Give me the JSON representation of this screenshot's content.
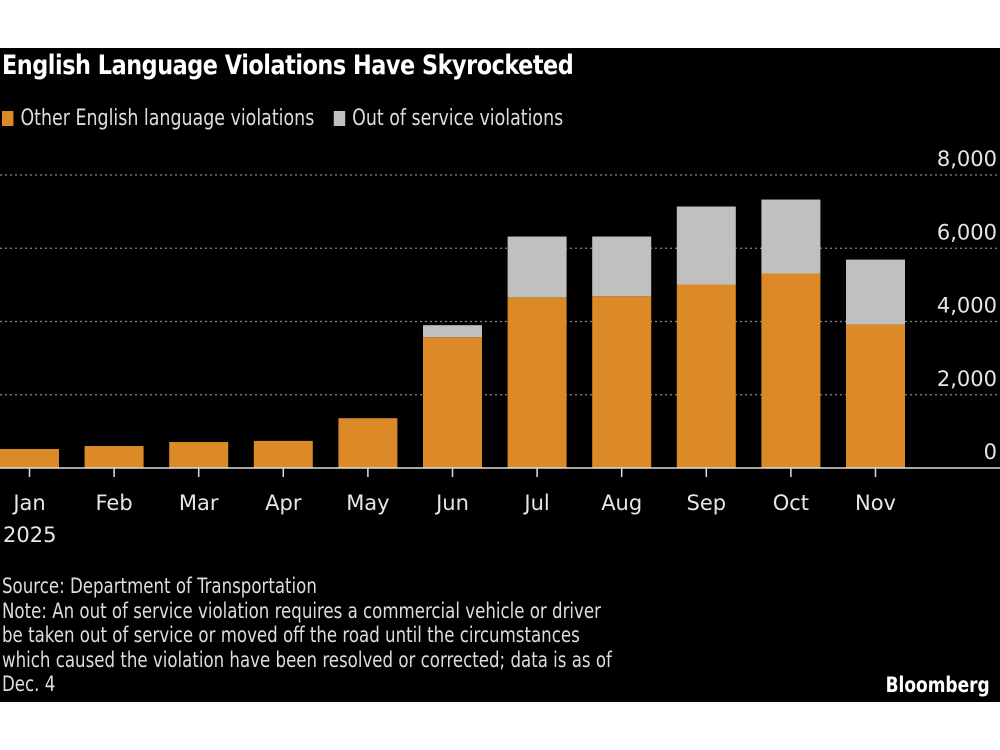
{
  "chart_data": {
    "type": "bar",
    "stacked": true,
    "title": "English Language Violations Have Skyrocketed",
    "categories": [
      "Jan",
      "Feb",
      "Mar",
      "Apr",
      "May",
      "Jun",
      "Jul",
      "Aug",
      "Sep",
      "Oct",
      "Nov"
    ],
    "x_sublabel": "2025",
    "series": [
      {
        "name": "Other English language violations",
        "color": "#dc8a27",
        "values": [
          520,
          600,
          710,
          740,
          1360,
          3570,
          4660,
          4690,
          5010,
          5310,
          3920
        ]
      },
      {
        "name": "Out of service violations",
        "color": "#c0c0c0",
        "values": [
          0,
          0,
          0,
          0,
          0,
          330,
          1660,
          1630,
          2130,
          2020,
          1770
        ]
      }
    ],
    "ylim": [
      0,
      8000
    ],
    "yticks": [
      "0",
      "2,000",
      "4,000",
      "6,000",
      "8,000"
    ],
    "ytick_values": [
      0,
      2000,
      4000,
      6000,
      8000
    ],
    "grid": true,
    "y_axis_side": "right",
    "legend_position": "top-left"
  },
  "footer": {
    "source": "Source: Department of Transportation",
    "note_lines": [
      "Note: An out of service violation requires a commercial vehicle or driver",
      "be taken out of service or moved off the road until the circumstances",
      "which caused the violation have been resolved or corrected; data is as of",
      "Dec. 4"
    ],
    "logo": "Bloomberg"
  }
}
